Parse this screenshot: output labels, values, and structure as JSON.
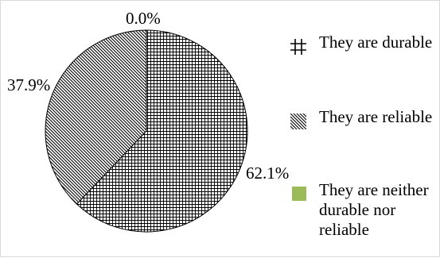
{
  "chart_data": {
    "type": "pie",
    "categories": [
      "They are durable",
      "They are reliable",
      "They are neither durable nor reliable"
    ],
    "values": [
      62.1,
      37.9,
      0.0
    ],
    "data_labels": [
      "62.1%",
      "37.9%",
      "0.0%"
    ],
    "label_colors": [
      "#000000",
      "#000000",
      "#000000"
    ],
    "fills": [
      "grid-pattern",
      "diagonal-hatch-pattern",
      "#9bbb59"
    ],
    "legend_position": "right",
    "start_angle": "12 o'clock, clockwise"
  }
}
